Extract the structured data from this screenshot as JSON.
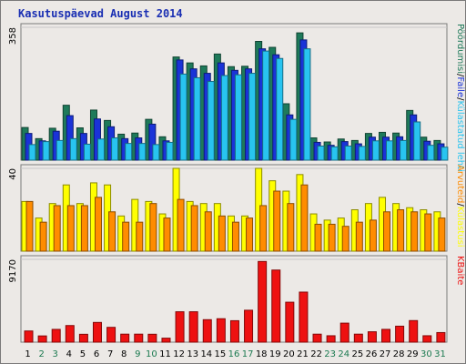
{
  "title": "Kasutuspäevad August 2014",
  "chart_data": [
    {
      "type": "bar",
      "panel": "top",
      "ymax_label": "358",
      "ylim": [
        0,
        358
      ],
      "categories": [
        "1",
        "2",
        "3",
        "4",
        "5",
        "6",
        "7",
        "8",
        "9",
        "10",
        "11",
        "12",
        "13",
        "14",
        "15",
        "16",
        "17",
        "18",
        "19",
        "20",
        "21",
        "22",
        "23",
        "24",
        "25",
        "26",
        "27",
        "28",
        "29",
        "30",
        "31"
      ],
      "series": [
        {
          "name": "Pöördumisi",
          "color": "#1e7a5a",
          "values": [
            88,
            58,
            86,
            148,
            87,
            135,
            107,
            70,
            73,
            110,
            63,
            278,
            262,
            254,
            286,
            252,
            253,
            320,
            304,
            152,
            343,
            60,
            49,
            57,
            53,
            72,
            75,
            73,
            134,
            62,
            53
          ]
        },
        {
          "name": "Faile",
          "color": "#1a33d8",
          "values": [
            72,
            52,
            78,
            120,
            72,
            111,
            90,
            58,
            60,
            97,
            52,
            270,
            246,
            234,
            262,
            242,
            246,
            300,
            284,
            122,
            324,
            48,
            40,
            50,
            44,
            62,
            62,
            63,
            122,
            51,
            44
          ]
        },
        {
          "name": "Külastatud lehti",
          "color": "#28c4f0",
          "values": [
            42,
            50,
            53,
            58,
            43,
            57,
            60,
            45,
            45,
            42,
            48,
            232,
            222,
            212,
            228,
            230,
            234,
            294,
            274,
            110,
            300,
            38,
            36,
            38,
            37,
            52,
            52,
            53,
            103,
            40,
            35
          ]
        }
      ],
      "ylabel_parts": [
        "Pöördumisi",
        "/",
        "Faile",
        "/",
        "Külastatud lehti"
      ]
    },
    {
      "type": "bar",
      "panel": "middle",
      "ymax_label": "40",
      "ylim": [
        0,
        40
      ],
      "categories": [
        "1",
        "2",
        "3",
        "4",
        "5",
        "6",
        "7",
        "8",
        "9",
        "10",
        "11",
        "12",
        "13",
        "14",
        "15",
        "16",
        "17",
        "18",
        "19",
        "20",
        "21",
        "22",
        "23",
        "24",
        "25",
        "26",
        "27",
        "28",
        "29",
        "30",
        "31"
      ],
      "series": [
        {
          "name": "Külastusi",
          "color": "#ffff00",
          "values": [
            24,
            16,
            23,
            32,
            23,
            33,
            32,
            17,
            25,
            24,
            18,
            40,
            24,
            23,
            23,
            17,
            17,
            40,
            34,
            29,
            37,
            18,
            15,
            16,
            20,
            23,
            26,
            23,
            21,
            20,
            19
          ]
        },
        {
          "name": "Arvuteid",
          "color": "#ff8c00",
          "values": [
            24,
            14,
            22,
            22,
            22,
            26,
            19,
            14,
            14,
            23,
            16,
            25,
            22,
            19,
            17,
            14,
            16,
            22,
            29,
            23,
            32,
            13,
            13,
            12,
            14,
            15,
            19,
            20,
            19,
            18,
            16
          ]
        }
      ],
      "ylabel_parts": [
        "Arvuteid",
        "/",
        "Külastusi"
      ]
    },
    {
      "type": "bar",
      "panel": "bottom",
      "ymax_label": "9170",
      "ylim": [
        0,
        9170
      ],
      "categories": [
        "1",
        "2",
        "3",
        "4",
        "5",
        "6",
        "7",
        "8",
        "9",
        "10",
        "11",
        "12",
        "13",
        "14",
        "15",
        "16",
        "17",
        "18",
        "19",
        "20",
        "21",
        "22",
        "23",
        "24",
        "25",
        "26",
        "27",
        "28",
        "29",
        "30",
        "31"
      ],
      "series": [
        {
          "name": "KBaite",
          "color": "#ee1111",
          "values": [
            1238,
            690,
            1415,
            1840,
            873,
            2185,
            1640,
            887,
            887,
            877,
            443,
            3366,
            3366,
            2490,
            2596,
            2377,
            3535,
            8934,
            7986,
            4425,
            5544,
            886,
            709,
            2106,
            887,
            1151,
            1418,
            1770,
            2390,
            710,
            1062
          ]
        }
      ],
      "ylabel_parts": [
        "KBaite"
      ]
    }
  ],
  "x_labels": [
    {
      "t": "1",
      "c": "#000000"
    },
    {
      "t": "2",
      "c": "#1b7a50"
    },
    {
      "t": "3",
      "c": "#1b7a50"
    },
    {
      "t": "4",
      "c": "#000000"
    },
    {
      "t": "5",
      "c": "#000000"
    },
    {
      "t": "6",
      "c": "#000000"
    },
    {
      "t": "7",
      "c": "#000000"
    },
    {
      "t": "8",
      "c": "#000000"
    },
    {
      "t": "9",
      "c": "#1b7a50"
    },
    {
      "t": "10",
      "c": "#1b7a50"
    },
    {
      "t": "11",
      "c": "#000000"
    },
    {
      "t": "12",
      "c": "#000000"
    },
    {
      "t": "13",
      "c": "#000000"
    },
    {
      "t": "14",
      "c": "#000000"
    },
    {
      "t": "15",
      "c": "#000000"
    },
    {
      "t": "16",
      "c": "#1b7a50"
    },
    {
      "t": "17",
      "c": "#1b7a50"
    },
    {
      "t": "18",
      "c": "#000000"
    },
    {
      "t": "19",
      "c": "#000000"
    },
    {
      "t": "20",
      "c": "#000000"
    },
    {
      "t": "21",
      "c": "#000000"
    },
    {
      "t": "22",
      "c": "#000000"
    },
    {
      "t": "23",
      "c": "#1b7a50"
    },
    {
      "t": "24",
      "c": "#1b7a50"
    },
    {
      "t": "25",
      "c": "#000000"
    },
    {
      "t": "26",
      "c": "#000000"
    },
    {
      "t": "27",
      "c": "#000000"
    },
    {
      "t": "28",
      "c": "#000000"
    },
    {
      "t": "29",
      "c": "#000000"
    },
    {
      "t": "30",
      "c": "#1b7a50"
    },
    {
      "t": "31",
      "c": "#1b7a50"
    }
  ],
  "label_colors": {
    "separator": "#000000"
  }
}
